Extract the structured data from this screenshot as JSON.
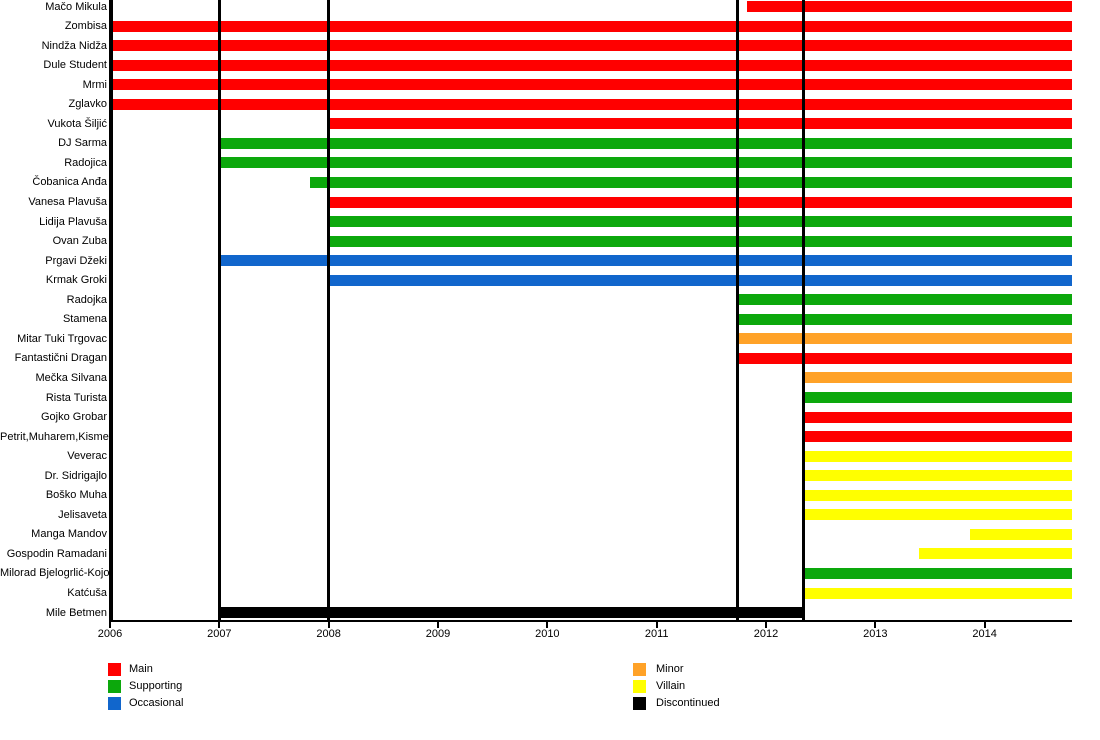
{
  "chart_data": {
    "type": "timeline",
    "title": "",
    "x_axis": {
      "min": 2006,
      "max": 2014.85,
      "ticks": [
        2006,
        2007,
        2008,
        2009,
        2010,
        2011,
        2012,
        2013,
        2014
      ]
    },
    "grid_lines_years": [
      2007,
      2008,
      2011.74,
      2012.34
    ],
    "bar_end_year": 2014.8,
    "role_colors": {
      "Main": "#FF0000",
      "Supporting": "#0CA80C",
      "Occasional": "#1166CC",
      "Minor": "#FFA228",
      "Villain": "#FFFF00",
      "Discontinued": "#000000"
    },
    "rows": [
      {
        "name": "Mačo Mikula",
        "role": "Main",
        "start": 2011.83,
        "end": 2014.8
      },
      {
        "name": "Zombisa",
        "role": "Main",
        "start": 2006,
        "end": 2014.8
      },
      {
        "name": "Nindža Nidža",
        "role": "Main",
        "start": 2006,
        "end": 2014.8
      },
      {
        "name": "Dule Student",
        "role": "Main",
        "start": 2006,
        "end": 2014.8
      },
      {
        "name": "Mrmi",
        "role": "Main",
        "start": 2006,
        "end": 2014.8
      },
      {
        "name": "Zglavko",
        "role": "Main",
        "start": 2006,
        "end": 2014.8
      },
      {
        "name": "Vukota Šiljić",
        "role": "Main",
        "start": 2008,
        "end": 2014.8
      },
      {
        "name": "DJ Sarma",
        "role": "Supporting",
        "start": 2007,
        "end": 2014.8
      },
      {
        "name": "Radojica",
        "role": "Supporting",
        "start": 2007,
        "end": 2014.8
      },
      {
        "name": "Čobanica Anđa",
        "role": "Supporting",
        "start": 2007.83,
        "end": 2014.8
      },
      {
        "name": "Vanesa Plavuša",
        "role": "Main",
        "start": 2008,
        "end": 2014.8
      },
      {
        "name": "Lidija Plavuša",
        "role": "Supporting",
        "start": 2008,
        "end": 2014.8
      },
      {
        "name": "Ovan Zuba",
        "role": "Supporting",
        "start": 2008,
        "end": 2014.8
      },
      {
        "name": "Prgavi Džeki",
        "role": "Occasional",
        "start": 2007,
        "end": 2014.8
      },
      {
        "name": "Krmak Groki",
        "role": "Occasional",
        "start": 2008,
        "end": 2014.8
      },
      {
        "name": "Radojka",
        "role": "Supporting",
        "start": 2011.74,
        "end": 2014.8
      },
      {
        "name": "Stamena",
        "role": "Supporting",
        "start": 2011.74,
        "end": 2014.8
      },
      {
        "name": "Mitar Tuki Trgovac",
        "role": "Minor",
        "start": 2011.74,
        "end": 2014.8
      },
      {
        "name": "Fantastični Dragan",
        "role": "Main",
        "start": 2011.74,
        "end": 2014.8
      },
      {
        "name": "Mečka Silvana",
        "role": "Minor",
        "start": 2012.34,
        "end": 2014.8
      },
      {
        "name": "Rista Turista",
        "role": "Supporting",
        "start": 2012.34,
        "end": 2014.8
      },
      {
        "name": "Gojko Grobar",
        "role": "Main",
        "start": 2012.34,
        "end": 2014.8
      },
      {
        "name": "Petrit,Muharem,Kismet",
        "role": "Main",
        "start": 2012.34,
        "end": 2014.8
      },
      {
        "name": "Veverac",
        "role": "Villain",
        "start": 2012.34,
        "end": 2014.8
      },
      {
        "name": "Dr. Sidrigajlo",
        "role": "Villain",
        "start": 2012.34,
        "end": 2014.8
      },
      {
        "name": "Boško Muha",
        "role": "Villain",
        "start": 2012.34,
        "end": 2014.8
      },
      {
        "name": "Jelisaveta",
        "role": "Villain",
        "start": 2012.34,
        "end": 2014.8
      },
      {
        "name": "Manga Mandov",
        "role": "Villain",
        "start": 2013.87,
        "end": 2014.8
      },
      {
        "name": "Gospodin Ramadani",
        "role": "Villain",
        "start": 2013.4,
        "end": 2014.8
      },
      {
        "name": "Milorad Bjelogrlić-Kojo",
        "role": "Supporting",
        "start": 2012.34,
        "end": 2014.8
      },
      {
        "name": "Katćuša",
        "role": "Villain",
        "start": 2012.34,
        "end": 2014.8
      },
      {
        "name": "Mile Betmen",
        "role": "Discontinued",
        "start": 2007,
        "end": 2012.34
      }
    ]
  },
  "legend": {
    "columns": [
      {
        "items": [
          {
            "label": "Main",
            "color": "#FF0000"
          },
          {
            "label": "Supporting",
            "color": "#0CA80C"
          },
          {
            "label": "Occasional",
            "color": "#1166CC"
          }
        ]
      },
      {
        "items": [
          {
            "label": "Minor",
            "color": "#FFA228"
          },
          {
            "label": "Villain",
            "color": "#FFFF00"
          },
          {
            "label": "Discontinued",
            "color": "#000000"
          }
        ]
      }
    ]
  }
}
